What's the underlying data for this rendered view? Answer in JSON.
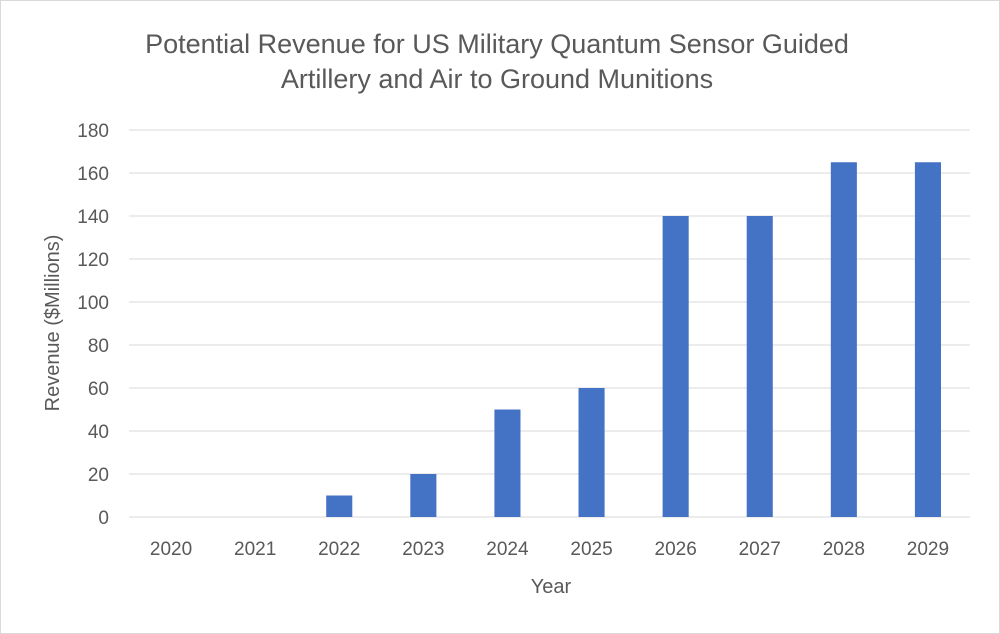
{
  "chart_data": {
    "type": "bar",
    "title_lines": [
      "Potential Revenue for US Military Quantum Sensor Guided",
      "Artillery and Air to Ground Munitions"
    ],
    "xlabel": "Year",
    "ylabel": "Revenue ($Millions)",
    "categories": [
      "2020",
      "2021",
      "2022",
      "2023",
      "2024",
      "2025",
      "2026",
      "2027",
      "2028",
      "2029"
    ],
    "values": [
      0,
      0,
      10,
      20,
      50,
      60,
      140,
      140,
      165,
      165
    ],
    "ylim": [
      0,
      180
    ],
    "yticks": [
      0,
      20,
      40,
      60,
      80,
      100,
      120,
      140,
      160,
      180
    ],
    "grid": true,
    "legend": "none",
    "colors": {
      "bar": "#4472C4",
      "grid": "#d9d9d9",
      "text": "#595959"
    }
  }
}
